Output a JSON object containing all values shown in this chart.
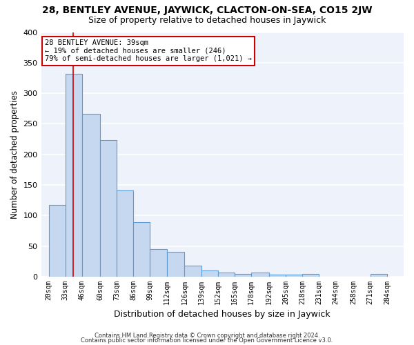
{
  "title1": "28, BENTLEY AVENUE, JAYWICK, CLACTON-ON-SEA, CO15 2JW",
  "title2": "Size of property relative to detached houses in Jaywick",
  "xlabel": "Distribution of detached houses by size in Jaywick",
  "ylabel": "Number of detached properties",
  "footer1": "Contains HM Land Registry data © Crown copyright and database right 2024.",
  "footer2": "Contains public sector information licensed under the Open Government Licence v3.0.",
  "bar_left_edges": [
    20,
    33,
    46,
    60,
    73,
    86,
    99,
    112,
    126,
    139,
    152,
    165,
    178,
    192,
    205,
    218,
    231,
    244,
    258,
    271
  ],
  "bar_widths": [
    13,
    13,
    14,
    13,
    13,
    13,
    13,
    14,
    13,
    13,
    13,
    13,
    14,
    13,
    13,
    13,
    13,
    14,
    13,
    13
  ],
  "bar_heights": [
    117,
    332,
    266,
    224,
    141,
    89,
    45,
    41,
    18,
    10,
    7,
    5,
    7,
    4,
    3,
    5,
    0,
    0,
    0,
    5
  ],
  "tick_labels": [
    "20sqm",
    "33sqm",
    "46sqm",
    "60sqm",
    "73sqm",
    "86sqm",
    "99sqm",
    "112sqm",
    "126sqm",
    "139sqm",
    "152sqm",
    "165sqm",
    "178sqm",
    "192sqm",
    "205sqm",
    "218sqm",
    "231sqm",
    "244sqm",
    "258sqm",
    "271sqm",
    "284sqm"
  ],
  "tick_positions": [
    20,
    33,
    46,
    60,
    73,
    86,
    99,
    112,
    126,
    139,
    152,
    165,
    178,
    192,
    205,
    218,
    231,
    244,
    258,
    271,
    284
  ],
  "bar_color": "#c5d8f0",
  "bar_edge_color": "#5b9bd5",
  "vline_x": 39,
  "vline_color": "#cc0000",
  "annotation_line1": "28 BENTLEY AVENUE: 39sqm",
  "annotation_line2": "← 19% of detached houses are smaller (246)",
  "annotation_line3": "79% of semi-detached houses are larger (1,021) →",
  "annotation_box_color": "#ffffff",
  "annotation_box_edge": "#cc0000",
  "ylim": [
    0,
    400
  ],
  "yticks": [
    0,
    50,
    100,
    150,
    200,
    250,
    300,
    350,
    400
  ],
  "xlim_left": 14,
  "xlim_right": 297,
  "background_color": "#edf2fb",
  "grid_color": "#ffffff",
  "title1_fontsize": 10,
  "title2_fontsize": 9,
  "xlabel_fontsize": 9,
  "ylabel_fontsize": 8.5,
  "tick_fontsize": 7,
  "annotation_fontsize": 7.5,
  "footer_fontsize": 6
}
